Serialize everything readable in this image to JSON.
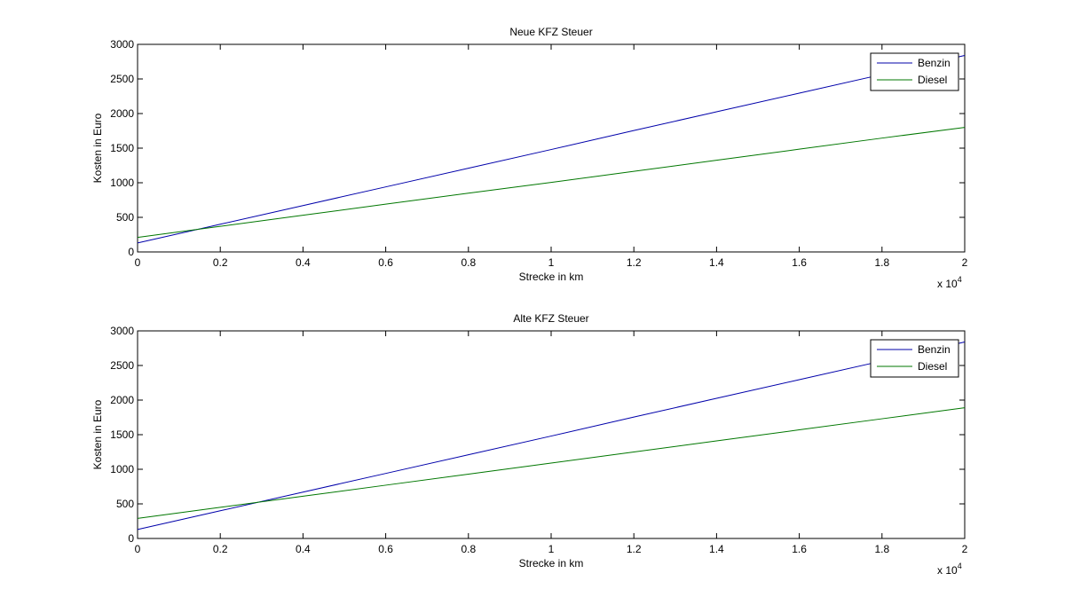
{
  "chart_data": [
    {
      "type": "line",
      "title": "Neue KFZ Steuer",
      "xlabel": "Strecke in km",
      "ylabel": "Kosten in Euro",
      "x_multiplier": {
        "base": "x 10",
        "exponent": "4"
      },
      "x": [
        0,
        2000,
        4000,
        6000,
        8000,
        10000,
        12000,
        14000,
        16000,
        18000,
        20000
      ],
      "series": [
        {
          "name": "Benzin",
          "color": "#0000aa",
          "values": [
            130,
            400,
            670,
            940,
            1210,
            1480,
            1755,
            2025,
            2295,
            2565,
            2840
          ]
        },
        {
          "name": "Diesel",
          "color": "#007700",
          "values": [
            210,
            370,
            530,
            690,
            850,
            1005,
            1165,
            1325,
            1485,
            1645,
            1800
          ]
        }
      ],
      "xlim": [
        0,
        20000
      ],
      "xticks": [
        0,
        {
          "value": 2000,
          "label": "0.2"
        },
        {
          "value": 4000,
          "label": "0.4"
        },
        {
          "value": 6000,
          "label": "0.6"
        },
        {
          "value": 8000,
          "label": "0.8"
        },
        {
          "value": 10000,
          "label": "1"
        },
        {
          "value": 12000,
          "label": "1.2"
        },
        {
          "value": 14000,
          "label": "1.4"
        },
        {
          "value": 16000,
          "label": "1.6"
        },
        {
          "value": 18000,
          "label": "1.8"
        },
        {
          "value": 20000,
          "label": "2"
        }
      ],
      "ylim": [
        0,
        3000
      ],
      "yticks": [
        0,
        500,
        1000,
        1500,
        2000,
        2500,
        3000
      ],
      "grid": false,
      "legend": "top-right"
    },
    {
      "type": "line",
      "title": "Alte KFZ Steuer",
      "xlabel": "Strecke in km",
      "ylabel": "Kosten in Euro",
      "x_multiplier": {
        "base": "x 10",
        "exponent": "4"
      },
      "x": [
        0,
        2000,
        4000,
        6000,
        8000,
        10000,
        12000,
        14000,
        16000,
        18000,
        20000
      ],
      "series": [
        {
          "name": "Benzin",
          "color": "#0000aa",
          "values": [
            130,
            400,
            670,
            940,
            1210,
            1480,
            1755,
            2025,
            2295,
            2565,
            2840
          ]
        },
        {
          "name": "Diesel",
          "color": "#007700",
          "values": [
            290,
            450,
            610,
            770,
            930,
            1090,
            1250,
            1410,
            1570,
            1730,
            1890
          ]
        }
      ],
      "xlim": [
        0,
        20000
      ],
      "xticks": [
        0,
        {
          "value": 2000,
          "label": "0.2"
        },
        {
          "value": 4000,
          "label": "0.4"
        },
        {
          "value": 6000,
          "label": "0.6"
        },
        {
          "value": 8000,
          "label": "0.8"
        },
        {
          "value": 10000,
          "label": "1"
        },
        {
          "value": 12000,
          "label": "1.2"
        },
        {
          "value": 14000,
          "label": "1.4"
        },
        {
          "value": 16000,
          "label": "1.6"
        },
        {
          "value": 18000,
          "label": "1.8"
        },
        {
          "value": 20000,
          "label": "2"
        }
      ],
      "ylim": [
        0,
        3000
      ],
      "yticks": [
        0,
        500,
        1000,
        1500,
        2000,
        2500,
        3000
      ],
      "grid": false,
      "legend": "top-right"
    }
  ]
}
